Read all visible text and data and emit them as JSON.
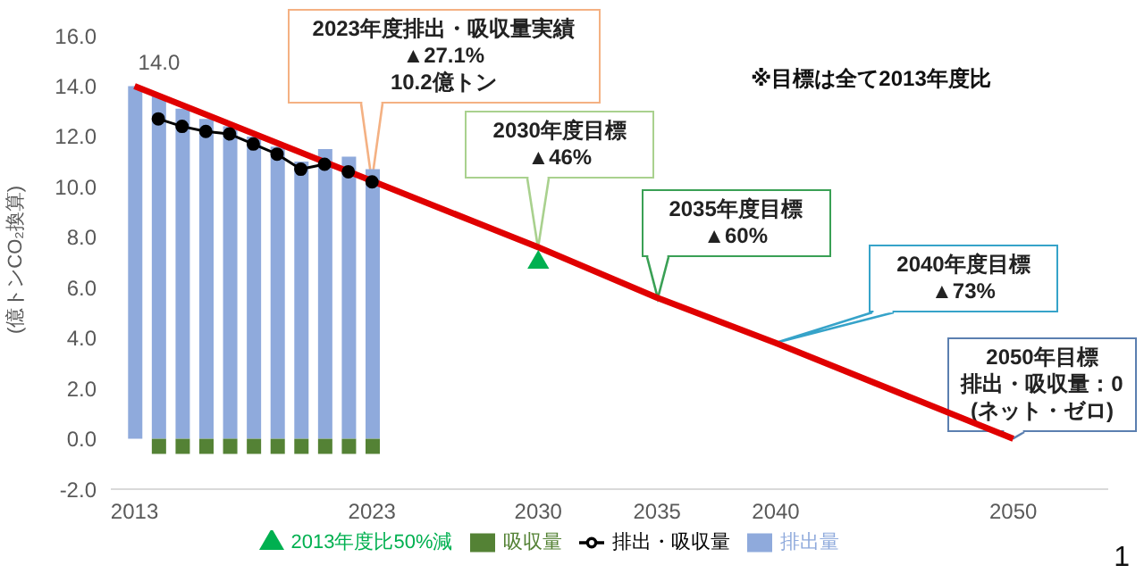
{
  "chart_data": {
    "type": "bar",
    "stacked": true,
    "ylabel": "(億トンCO₂換算)",
    "x": [
      2013,
      2014,
      2015,
      2016,
      2017,
      2018,
      2019,
      2020,
      2021,
      2022,
      2023
    ],
    "xlim": [
      2012,
      2054
    ],
    "xticks": [
      2013,
      2023,
      2030,
      2035,
      2040,
      2050
    ],
    "ylim": [
      -2,
      16
    ],
    "yticks": [
      {
        "value": -2,
        "label": "-2.0"
      },
      {
        "value": 0,
        "label": "0.0"
      },
      {
        "value": 2,
        "label": "2.0"
      },
      {
        "value": 4,
        "label": "4.0"
      },
      {
        "value": 6,
        "label": "6.0"
      },
      {
        "value": 8,
        "label": "8.0"
      },
      {
        "value": 10,
        "label": "10.0"
      },
      {
        "value": 12,
        "label": "12.0"
      },
      {
        "value": 14,
        "label": "14.0"
      },
      {
        "value": 16,
        "label": "16.0"
      }
    ],
    "series": [
      {
        "name": "排出量",
        "color": "#8faadc",
        "values": [
          14.0,
          13.6,
          13.1,
          12.7,
          12.4,
          12.0,
          11.6,
          11.0,
          11.5,
          11.2,
          10.7
        ]
      },
      {
        "name": "吸収量",
        "color": "#548235",
        "values": [
          null,
          -0.6,
          -0.6,
          -0.6,
          -0.6,
          -0.6,
          -0.6,
          -0.6,
          -0.6,
          -0.6,
          -0.6
        ]
      },
      {
        "name": "排出・吸収量",
        "type": "line",
        "color": "#000000",
        "marker": "circle",
        "x": [
          2014,
          2015,
          2016,
          2017,
          2018,
          2019,
          2020,
          2021,
          2022,
          2023
        ],
        "values": [
          12.7,
          12.4,
          12.2,
          12.1,
          11.7,
          11.3,
          10.7,
          10.9,
          10.6,
          10.2
        ]
      },
      {
        "type": "line",
        "color": "#e00000",
        "marker": "none",
        "x": [
          2013,
          2030,
          2035,
          2040,
          2050
        ],
        "values": [
          14.0,
          7.6,
          5.6,
          3.8,
          0
        ]
      },
      {
        "name": "2013年度比50%減",
        "type": "scatter",
        "color": "#00b050",
        "marker": "triangle",
        "x": [
          2030
        ],
        "values": [
          7.0
        ]
      }
    ],
    "annotations": [
      {
        "text": "14.0",
        "x": 2013,
        "y": 14.0
      },
      {
        "text": "2023年度排出・吸収量実績\n▲27.1%\n10.2億トン",
        "x": 2023,
        "y": 10.2
      },
      {
        "text": "2030年度目標\n▲46%",
        "x": 2030,
        "y": 7.6
      },
      {
        "text": "2035年度目標\n▲60%",
        "x": 2035,
        "y": 5.6
      },
      {
        "text": "2040年度目標\n▲73%",
        "x": 2040,
        "y": 3.8
      },
      "2050年目標",
      {
        "text": "排出・吸収量：0\n(ネット・ゼロ)",
        "x": 2050,
        "y": 0
      },
      "※目標は全て2013年度比",
      "1"
    ],
    "legend": "bottom"
  }
}
